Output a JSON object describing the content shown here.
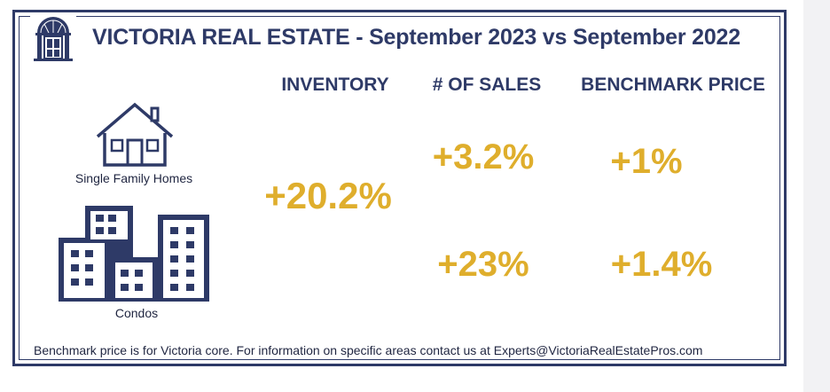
{
  "header": {
    "title": "VICTORIA REAL ESTATE - September 2023 vs September 2022"
  },
  "columns": {
    "inventory": "INVENTORY",
    "sales": "# OF SALES",
    "benchmark": "BENCHMARK PRICE"
  },
  "rows": {
    "single_family_label": "Single Family Homes",
    "condos_label": "Condos"
  },
  "stats": {
    "inventory_combined": "+20.2%",
    "single_family_sales": "+3.2%",
    "single_family_benchmark": "+1%",
    "condos_sales": "+23%",
    "condos_benchmark": "+1.4%"
  },
  "footnote": "Benchmark price is for Victoria core. For information on specific areas contact us at Experts@VictoriaRealEstatePros.com",
  "colors": {
    "navy": "#2e3a67",
    "gold": "#dfae2c"
  },
  "icons": {
    "logo": "doorway-logo-icon",
    "single_family": "house-icon",
    "condos": "condo-buildings-icon"
  }
}
